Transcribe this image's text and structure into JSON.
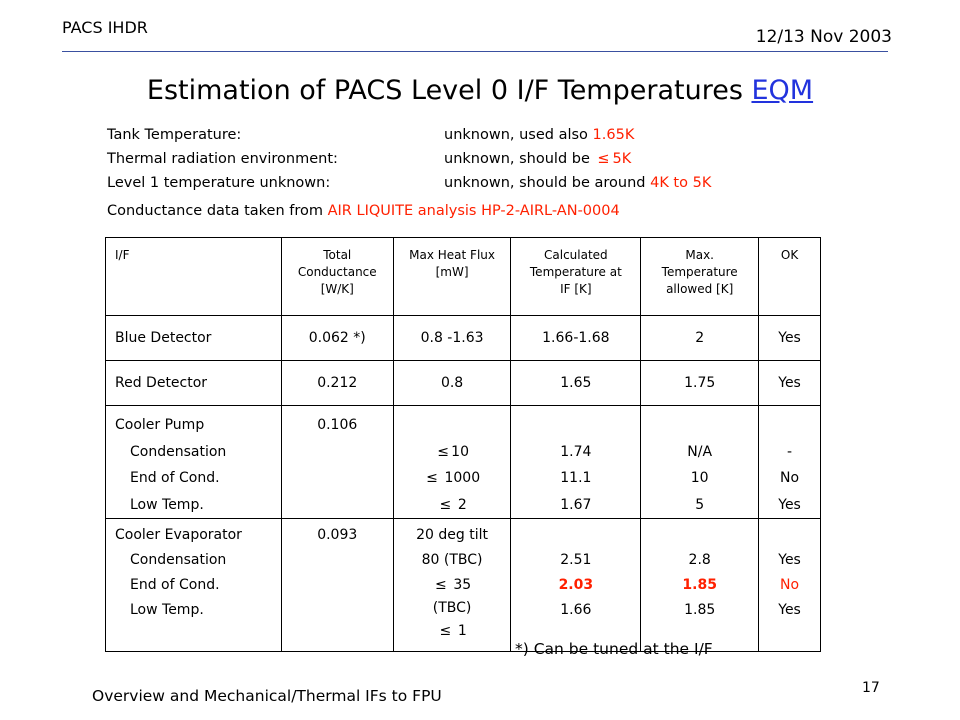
{
  "header": {
    "left": "PACS IHDR",
    "right": "12/13 Nov 2003"
  },
  "title": {
    "text": "Estimation of PACS Level 0 I/F Temperatures ",
    "link": "EQM"
  },
  "info": [
    {
      "label": "Tank Temperature:",
      "value_prefix": "unknown, used also ",
      "value_red": "1.65K"
    },
    {
      "label": "Thermal radiation environment:",
      "value_prefix": "unknown, should be ",
      "value_red": "5K",
      "glyph": "≤"
    },
    {
      "label": "Level 1 temperature unknown:",
      "value_prefix": "unknown, should be around ",
      "value_red": "4K to 5K"
    }
  ],
  "conductance": {
    "prefix": "Conductance data taken from ",
    "text": "AIR LIQUITE analysis HP-2-AIRL-AN-0004"
  },
  "glyphs": {
    "approx": "≤"
  },
  "table": {
    "headers": {
      "if": "I/F",
      "cond": [
        "Total",
        "Conductance",
        "[W/K]"
      ],
      "flux": [
        "Max Heat Flux",
        "[mW]"
      ],
      "calc": [
        "Calculated",
        "Temperature at",
        "IF [K]"
      ],
      "max": [
        "Max.",
        "Temperature",
        "allowed [K]"
      ],
      "ok": "OK"
    },
    "blue": {
      "if": "Blue Detector",
      "cond": "0.062 *)",
      "flux": "0.8 -1.63",
      "calc": "1.66-1.68",
      "max": "2",
      "ok": "Yes"
    },
    "red": {
      "if": "Red Detector",
      "cond": "0.212",
      "flux": "0.8",
      "calc": "1.65",
      "max": "1.75",
      "ok": "Yes"
    },
    "pump": {
      "if": "Cooler Pump",
      "subs": [
        "Condensation",
        "End of Cond.",
        "Low Temp."
      ],
      "cond": "0.106",
      "flux": [
        "10",
        "1000",
        "2"
      ],
      "calc": [
        "1.74",
        "11.1",
        "1.67"
      ],
      "max": [
        "N/A",
        "10",
        "5"
      ],
      "ok": [
        "-",
        "No",
        "Yes"
      ]
    },
    "evap": {
      "if": "Cooler Evaporator",
      "subs": [
        "Condensation",
        "End of Cond.",
        "Low Temp."
      ],
      "cond": "0.093",
      "flux": [
        "20 deg tilt",
        "80 (TBC)",
        "35",
        "(TBC)",
        "1"
      ],
      "calc": [
        "2.51",
        "2.03",
        "1.66"
      ],
      "max": [
        "2.8",
        "1.85",
        "1.85"
      ],
      "ok": [
        "Yes",
        "No",
        "Yes"
      ]
    }
  },
  "footnote": "*) Can be tuned at the I/F",
  "footer": {
    "text": "Overview and Mechanical/Thermal IFs to FPU",
    "page": "17"
  },
  "colors": {
    "red": "#ff2000",
    "link": "#2233dd",
    "rule": "#3a50a0"
  }
}
